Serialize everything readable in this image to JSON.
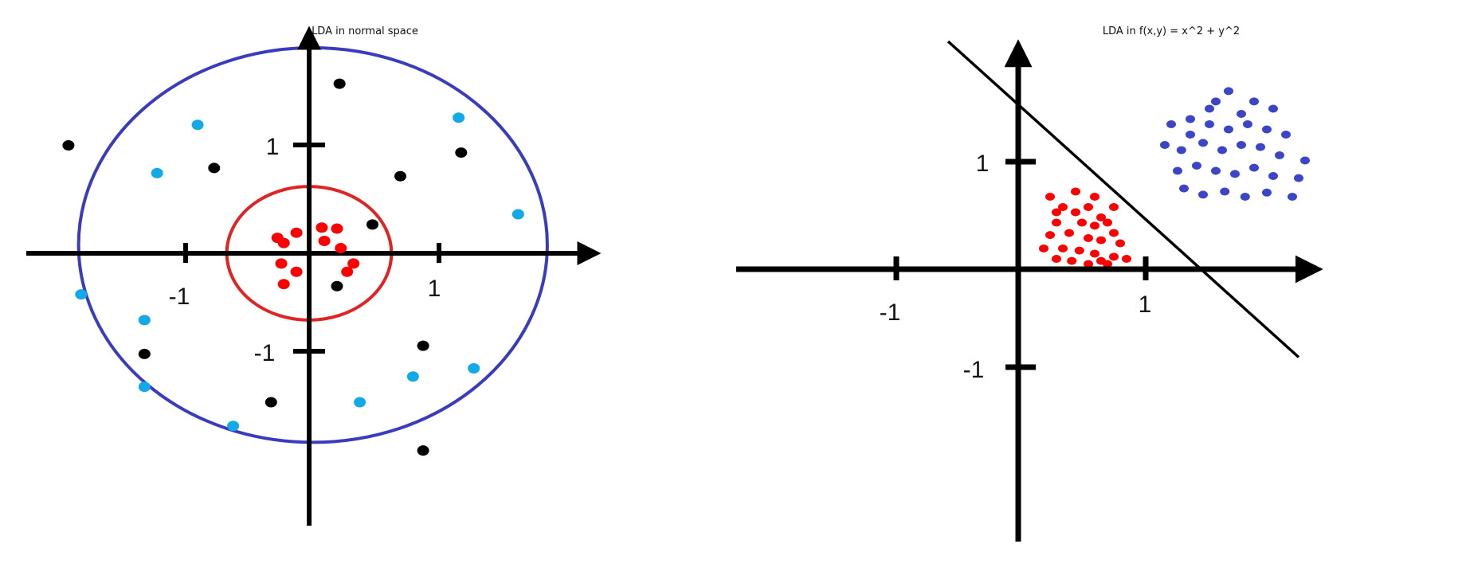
{
  "colors": {
    "axis": "#000000",
    "outer_circle": "#3b3bbd",
    "inner_circle": "#e02424",
    "red_points": "#ff0000",
    "cyan_points": "#12a9e8",
    "black_points": "#000000",
    "blue_points": "#3c44c8"
  },
  "panels": [
    {
      "title": "LDA in normal space",
      "tick_labels": {
        "x_neg": "-1",
        "x_pos": "1",
        "y_pos": "1",
        "y_neg": "-1"
      },
      "shapes": [
        {
          "name": "outer-circle",
          "kind": "ellipse",
          "color_key": "outer_circle",
          "center": [
            0.03,
            0.08
          ],
          "radius": [
            1.85,
            1.92
          ]
        },
        {
          "name": "inner-circle",
          "kind": "ellipse",
          "color_key": "inner_circle",
          "center": [
            0.0,
            0.0
          ],
          "radius": [
            0.65,
            0.65
          ]
        }
      ],
      "series": [
        {
          "name": "",
          "color_key": "red_points",
          "points": [
            [
              -0.25,
              0.15
            ],
            [
              -0.1,
              0.2
            ],
            [
              -0.2,
              0.1
            ],
            [
              0.1,
              0.25
            ],
            [
              0.22,
              0.24
            ],
            [
              0.12,
              0.12
            ],
            [
              0.25,
              0.05
            ],
            [
              -0.22,
              -0.1
            ],
            [
              0.35,
              -0.1
            ],
            [
              0.3,
              -0.18
            ],
            [
              -0.1,
              -0.18
            ],
            [
              -0.2,
              -0.3
            ]
          ]
        },
        {
          "name": "",
          "color_key": "black_points",
          "points": [
            [
              0.24,
              1.65
            ],
            [
              -1.9,
              1.05
            ],
            [
              -0.75,
              0.83
            ],
            [
              0.72,
              0.75
            ],
            [
              1.2,
              0.98
            ],
            [
              0.5,
              0.28
            ],
            [
              0.22,
              -0.32
            ],
            [
              -1.3,
              -0.98
            ],
            [
              0.9,
              -0.9
            ],
            [
              -0.3,
              -1.45
            ],
            [
              0.9,
              -1.92
            ]
          ]
        },
        {
          "name": "",
          "color_key": "cyan_points",
          "points": [
            [
              -0.88,
              1.25
            ],
            [
              1.18,
              1.32
            ],
            [
              -1.2,
              0.78
            ],
            [
              1.65,
              0.38
            ],
            [
              -1.8,
              -0.4
            ],
            [
              -1.3,
              -0.65
            ],
            [
              -1.3,
              -1.3
            ],
            [
              1.3,
              -1.12
            ],
            [
              0.82,
              -1.2
            ],
            [
              0.4,
              -1.45
            ],
            [
              -0.6,
              -1.68
            ]
          ]
        }
      ]
    },
    {
      "title": "LDA in f(x,y) = x^2 + y^2",
      "tick_labels": {
        "x_neg": "-1",
        "x_pos": "1",
        "y_pos": "1",
        "y_neg": "-1"
      },
      "shapes": [
        {
          "name": "decision-line",
          "kind": "line",
          "color_key": "axis",
          "from": [
            -0.55,
            2.2
          ],
          "to": [
            2.2,
            -0.85
          ]
        }
      ],
      "series": [
        {
          "name": "",
          "color_key": "red_points",
          "points": [
            [
              0.25,
              0.7
            ],
            [
              0.35,
              0.6
            ],
            [
              0.45,
              0.55
            ],
            [
              0.55,
              0.6
            ],
            [
              0.65,
              0.5
            ],
            [
              0.3,
              0.45
            ],
            [
              0.5,
              0.45
            ],
            [
              0.6,
              0.42
            ],
            [
              0.7,
              0.45
            ],
            [
              0.75,
              0.35
            ],
            [
              0.25,
              0.33
            ],
            [
              0.4,
              0.35
            ],
            [
              0.55,
              0.3
            ],
            [
              0.65,
              0.28
            ],
            [
              0.8,
              0.25
            ],
            [
              0.2,
              0.2
            ],
            [
              0.35,
              0.2
            ],
            [
              0.48,
              0.18
            ],
            [
              0.6,
              0.15
            ],
            [
              0.75,
              0.12
            ],
            [
              0.3,
              0.1
            ],
            [
              0.42,
              0.08
            ],
            [
              0.55,
              0.05
            ],
            [
              0.65,
              0.08
            ],
            [
              0.85,
              0.1
            ],
            [
              0.7,
              0.05
            ],
            [
              0.3,
              0.55
            ],
            [
              0.75,
              0.6
            ],
            [
              0.45,
              0.75
            ],
            [
              0.6,
              0.7
            ]
          ]
        },
        {
          "name": "",
          "color_key": "blue_points",
          "points": [
            [
              1.2,
              1.4
            ],
            [
              1.35,
              1.45
            ],
            [
              1.5,
              1.4
            ],
            [
              1.65,
              1.35
            ],
            [
              1.8,
              1.4
            ],
            [
              1.95,
              1.35
            ],
            [
              2.1,
              1.3
            ],
            [
              1.15,
              1.2
            ],
            [
              1.28,
              1.15
            ],
            [
              1.45,
              1.22
            ],
            [
              1.6,
              1.15
            ],
            [
              1.75,
              1.2
            ],
            [
              1.9,
              1.18
            ],
            [
              2.05,
              1.1
            ],
            [
              2.25,
              1.05
            ],
            [
              1.25,
              0.95
            ],
            [
              1.4,
              1.0
            ],
            [
              1.55,
              0.95
            ],
            [
              1.7,
              0.92
            ],
            [
              1.85,
              0.98
            ],
            [
              2.0,
              0.9
            ],
            [
              2.2,
              0.88
            ],
            [
              1.3,
              0.78
            ],
            [
              1.45,
              0.72
            ],
            [
              1.62,
              0.75
            ],
            [
              1.78,
              0.7
            ],
            [
              1.95,
              0.74
            ],
            [
              2.15,
              0.7
            ],
            [
              1.5,
              1.55
            ],
            [
              1.75,
              1.5
            ],
            [
              1.65,
              1.72
            ],
            [
              1.85,
              1.62
            ],
            [
              1.35,
              1.3
            ],
            [
              2.0,
              1.55
            ],
            [
              1.55,
              1.62
            ]
          ]
        }
      ]
    }
  ]
}
